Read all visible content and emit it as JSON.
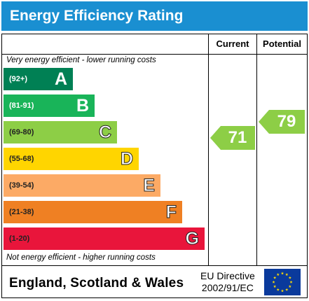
{
  "header": {
    "title": "Energy Efficiency Rating"
  },
  "columns": {
    "current": "Current",
    "potential": "Potential"
  },
  "notes": {
    "top": "Very energy efficient - lower running costs",
    "bottom": "Not energy efficient - higher running costs"
  },
  "bands": [
    {
      "range": "(92+)",
      "letter": "A",
      "color": "#008054"
    },
    {
      "range": "(81-91)",
      "letter": "B",
      "color": "#19b459"
    },
    {
      "range": "(69-80)",
      "letter": "C",
      "color": "#8dce46"
    },
    {
      "range": "(55-68)",
      "letter": "D",
      "color": "#ffd500"
    },
    {
      "range": "(39-54)",
      "letter": "E",
      "color": "#fcaa65"
    },
    {
      "range": "(21-38)",
      "letter": "F",
      "color": "#ef8023"
    },
    {
      "range": "(1-20)",
      "letter": "G",
      "color": "#e9153b"
    }
  ],
  "ratings": {
    "current": {
      "value": "71",
      "color": "#8dce46"
    },
    "potential": {
      "value": "79",
      "color": "#8dce46"
    }
  },
  "footer": {
    "country": "England, Scotland & Wales",
    "directive_line1": "EU Directive",
    "directive_line2": "2002/91/EC",
    "flag_icon": "eu-flag-icon"
  }
}
